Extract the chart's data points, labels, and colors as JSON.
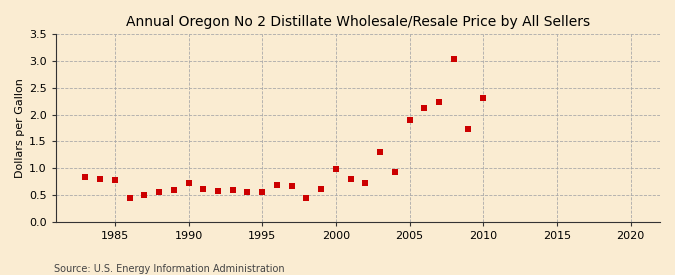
{
  "title": "Annual Oregon No 2 Distillate Wholesale/Resale Price by All Sellers",
  "ylabel": "Dollars per Gallon",
  "source": "Source: U.S. Energy Information Administration",
  "background_color": "#faecd2",
  "plot_background_color": "#faecd2",
  "marker_color": "#cc0000",
  "marker_size": 4,
  "xlim": [
    1981,
    2022
  ],
  "ylim": [
    0.0,
    3.5
  ],
  "xticks": [
    1985,
    1990,
    1995,
    2000,
    2005,
    2010,
    2015,
    2020
  ],
  "yticks": [
    0.0,
    0.5,
    1.0,
    1.5,
    2.0,
    2.5,
    3.0,
    3.5
  ],
  "years": [
    1983,
    1984,
    1985,
    1986,
    1987,
    1988,
    1989,
    1990,
    1991,
    1992,
    1993,
    1994,
    1995,
    1996,
    1997,
    1998,
    1999,
    2000,
    2001,
    2002,
    2003,
    2004,
    2005,
    2006,
    2007,
    2008,
    2009,
    2010
  ],
  "values": [
    0.84,
    0.79,
    0.78,
    0.44,
    0.5,
    0.56,
    0.6,
    0.73,
    0.62,
    0.58,
    0.59,
    0.55,
    0.56,
    0.69,
    0.66,
    0.45,
    0.61,
    0.98,
    0.79,
    0.72,
    1.3,
    0.93,
    1.9,
    2.12,
    2.23,
    3.04,
    1.73,
    2.31
  ],
  "grid_color": "#aaaaaa",
  "grid_linestyle": "--",
  "grid_linewidth": 0.6,
  "spine_color": "#333333",
  "tick_color": "#333333",
  "title_fontsize": 10,
  "label_fontsize": 8,
  "tick_fontsize": 8,
  "source_fontsize": 7
}
